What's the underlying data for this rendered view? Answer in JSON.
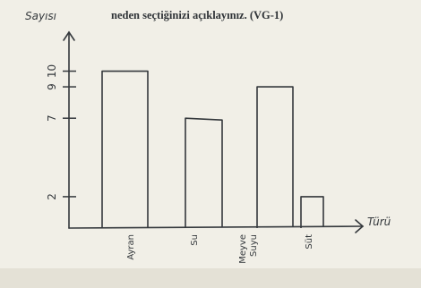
{
  "header": {
    "printed_instruction": "neden seçtiğinizi açıklayınız. (VG-1)"
  },
  "chart_data": {
    "type": "bar",
    "ylabel": "Sayısı",
    "xlabel": "Türü",
    "categories": [
      "Ayran",
      "Su",
      "Meyve Suyu",
      "Süt"
    ],
    "values": [
      10,
      7,
      9,
      2
    ],
    "y_ticks": [
      {
        "value": 2,
        "label": "2"
      },
      {
        "value": 7,
        "label": "7"
      },
      {
        "value": 9,
        "label": "9"
      },
      {
        "value": 10,
        "label": "10"
      }
    ],
    "ylim": [
      0,
      11
    ],
    "grid": false,
    "style": "hand-drawn outline bars",
    "colors": {
      "ink": "#34383c",
      "paper": "#f1efe7"
    }
  }
}
